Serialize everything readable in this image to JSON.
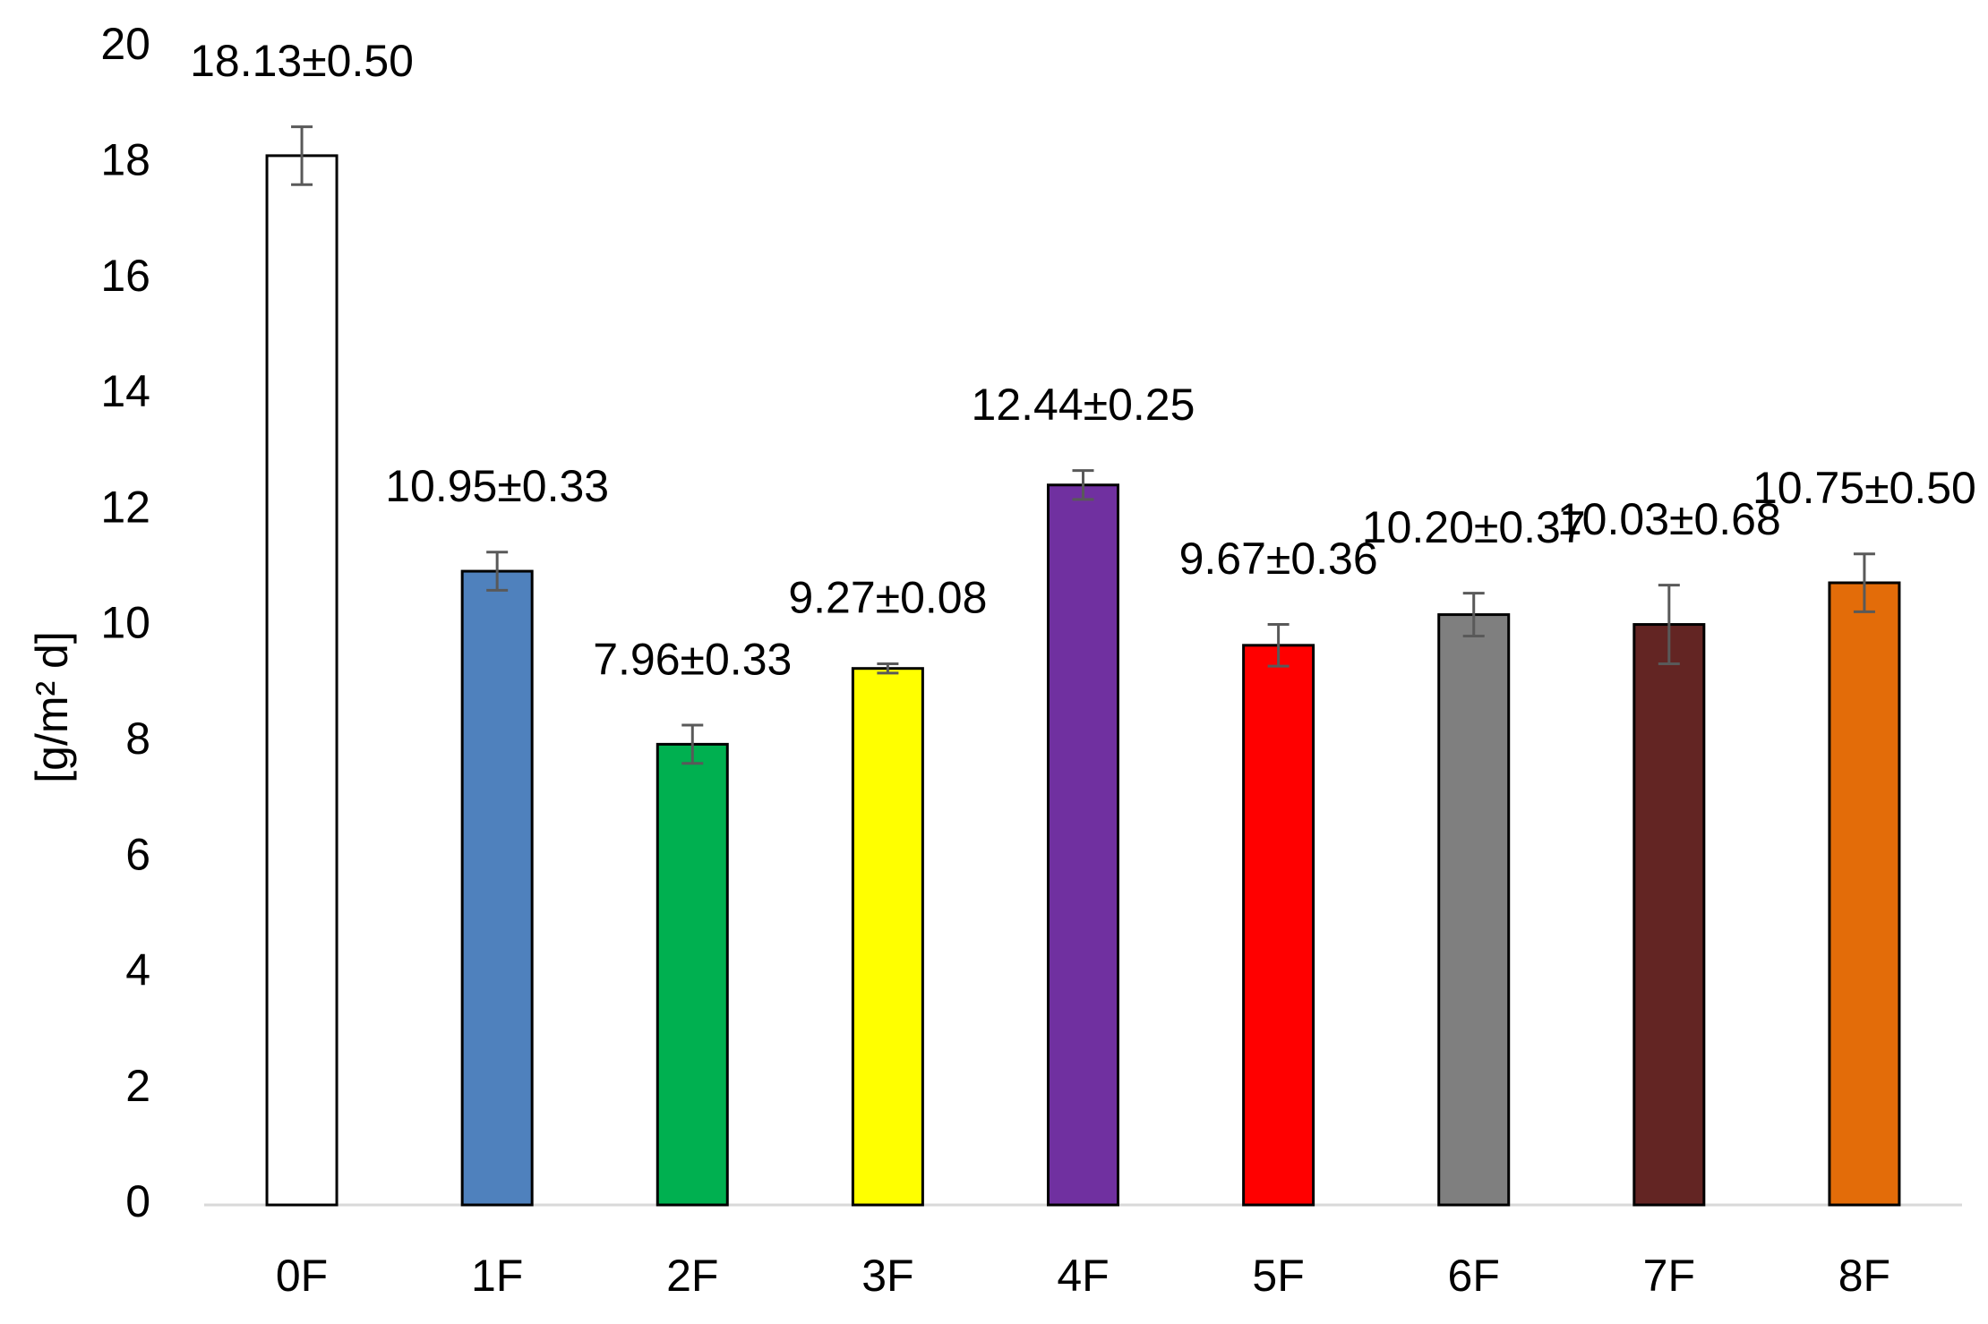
{
  "chart_data": {
    "type": "bar",
    "y_label": "[g/m² d]",
    "categories": [
      "0F",
      "1F",
      "2F",
      "3F",
      "4F",
      "5F",
      "6F",
      "7F",
      "8F"
    ],
    "values": [
      18.13,
      10.95,
      7.96,
      9.27,
      12.44,
      9.67,
      10.2,
      10.03,
      10.75
    ],
    "errors": [
      0.5,
      0.33,
      0.33,
      0.08,
      0.25,
      0.36,
      0.37,
      0.68,
      0.5
    ],
    "value_labels": [
      "18.13±0.50",
      "10.95±0.33",
      "7.96±0.33",
      "9.27±0.08",
      "12.44±0.25",
      "9.67±0.36",
      "10.20±0.37",
      "10.03±0.68",
      "10.75±0.50"
    ],
    "colors": [
      "#ffffff",
      "#4f81bd",
      "#00b050",
      "#ffff00",
      "#7030a0",
      "#ff0000",
      "#7f7f7f",
      "#632523",
      "#e36c09"
    ],
    "ylim": [
      0,
      20
    ],
    "yticks": [
      0,
      2,
      4,
      6,
      8,
      10,
      12,
      14,
      16,
      18,
      20
    ],
    "grid": false
  }
}
